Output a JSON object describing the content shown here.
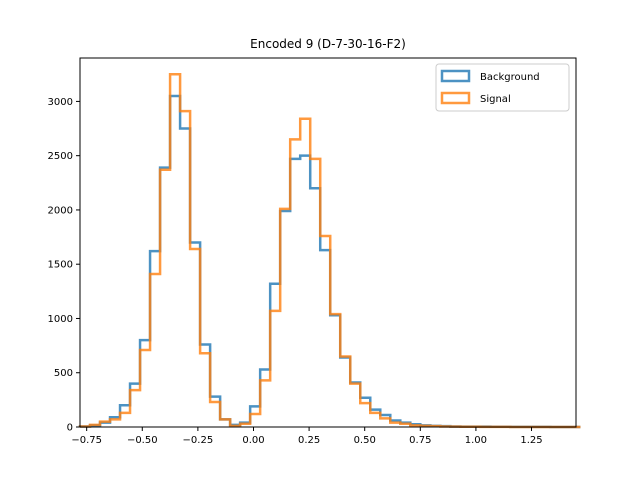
{
  "chart_data": {
    "type": "histogram",
    "title": "Encoded 9 (D-7-30-16-F2)",
    "xlabel": "",
    "ylabel": "",
    "xlim": [
      -0.78,
      1.45
    ],
    "ylim": [
      0,
      3400
    ],
    "xticks": [
      -0.75,
      -0.5,
      -0.25,
      0.0,
      0.25,
      0.5,
      0.75,
      1.0,
      1.25
    ],
    "xtick_labels": [
      "−0.75",
      "−0.50",
      "−0.25",
      "0.00",
      "0.25",
      "0.50",
      "0.75",
      "1.00",
      "1.25"
    ],
    "yticks": [
      0,
      500,
      1000,
      1500,
      2000,
      2500,
      3000
    ],
    "ytick_labels": [
      "0",
      "500",
      "1000",
      "1500",
      "2000",
      "2500",
      "3000"
    ],
    "legend_position": "upper right",
    "bin_edges": [
      -0.78,
      -0.735,
      -0.69,
      -0.645,
      -0.6,
      -0.555,
      -0.51,
      -0.465,
      -0.42,
      -0.375,
      -0.33,
      -0.285,
      -0.24,
      -0.195,
      -0.15,
      -0.105,
      -0.06,
      -0.015,
      0.03,
      0.075,
      0.12,
      0.165,
      0.21,
      0.255,
      0.3,
      0.345,
      0.39,
      0.435,
      0.48,
      0.525,
      0.57,
      0.615,
      0.66,
      0.705,
      0.75,
      0.795,
      0.84,
      0.885,
      0.93,
      0.975,
      1.02,
      1.065,
      1.11,
      1.155,
      1.2,
      1.245,
      1.29,
      1.335,
      1.38,
      1.425,
      1.47
    ],
    "series": [
      {
        "name": "Background",
        "color": "#1f77b4",
        "values": [
          5,
          15,
          40,
          90,
          200,
          400,
          800,
          1620,
          2390,
          3050,
          2750,
          1700,
          760,
          280,
          70,
          20,
          40,
          190,
          530,
          1320,
          1990,
          2470,
          2500,
          2200,
          1630,
          1030,
          640,
          410,
          270,
          160,
          110,
          60,
          40,
          25,
          15,
          10,
          8,
          5,
          4,
          3,
          3,
          2,
          2,
          1,
          1,
          1,
          1,
          0,
          0,
          0
        ]
      },
      {
        "name": "Signal",
        "color": "#ff7f0e",
        "values": [
          5,
          20,
          50,
          70,
          130,
          340,
          710,
          1410,
          2370,
          3250,
          2910,
          1640,
          680,
          230,
          70,
          10,
          30,
          120,
          430,
          1070,
          2010,
          2650,
          2840,
          2470,
          1760,
          1040,
          650,
          400,
          220,
          130,
          80,
          40,
          30,
          15,
          10,
          8,
          5,
          3,
          2,
          2,
          1,
          1,
          1,
          0,
          0,
          0,
          0,
          0,
          0,
          0
        ]
      }
    ]
  }
}
